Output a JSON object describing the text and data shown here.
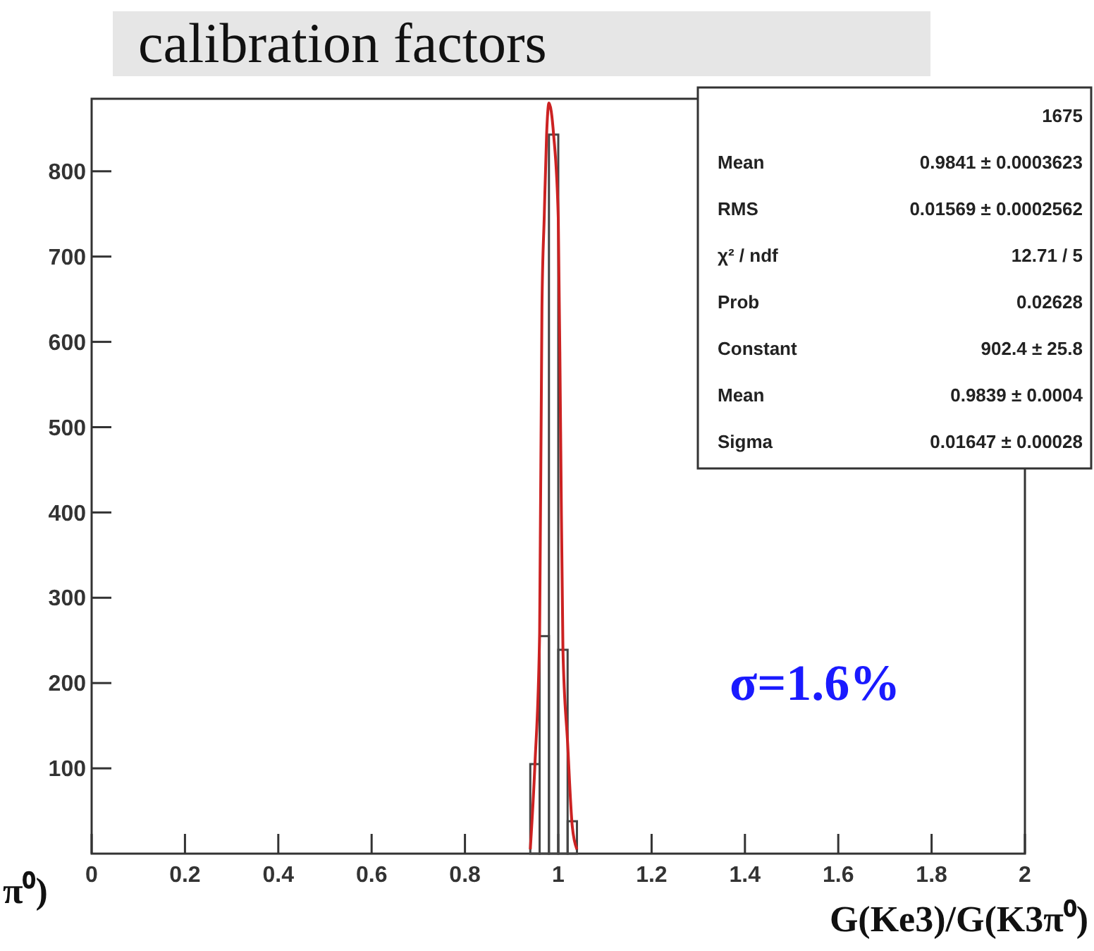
{
  "chart_data": {
    "type": "histogram",
    "title": "calibration factors",
    "xlabel": "G(Ke3)/G(K3π⁰)",
    "bins": [
      0.94,
      0.96,
      0.98,
      1.0,
      1.02,
      1.04
    ],
    "values": [
      105,
      255,
      843,
      239,
      38
    ],
    "color": "#444444",
    "series": [
      {
        "type": "line",
        "color": "#cc2222",
        "x": [
          0.94,
          0.95,
          0.96,
          0.965,
          0.97,
          0.975,
          0.98,
          0.99,
          1.0,
          1.005,
          1.01,
          1.02,
          1.03,
          1.04
        ],
        "values": [
          5,
          105,
          258,
          640,
          748,
          843,
          880,
          843,
          745,
          495,
          239,
          130,
          32,
          5
        ]
      }
    ],
    "xlim": [
      0,
      2
    ],
    "xticks": [
      0,
      0.2,
      0.4,
      0.6,
      0.8,
      1,
      1.2,
      1.4,
      1.6,
      1.8,
      2
    ],
    "ylim": [
      0,
      885
    ],
    "yticks": [
      100,
      200,
      300,
      400,
      500,
      600,
      700,
      800
    ],
    "grid": false,
    "annotations": [
      "σ=1.6%",
      "π⁰)",
      "1675",
      "Mean  0.9841 ± 0.0003623",
      "RMS  0.01569 ± 0.0002562",
      "χ² / ndf  12.71 / 5",
      "Prob  0.02628",
      "Constant  902.4 ± 25.8",
      "Mean  0.9839 ± 0.0004",
      "Sigma  0.01647 ± 0.00028"
    ]
  }
}
